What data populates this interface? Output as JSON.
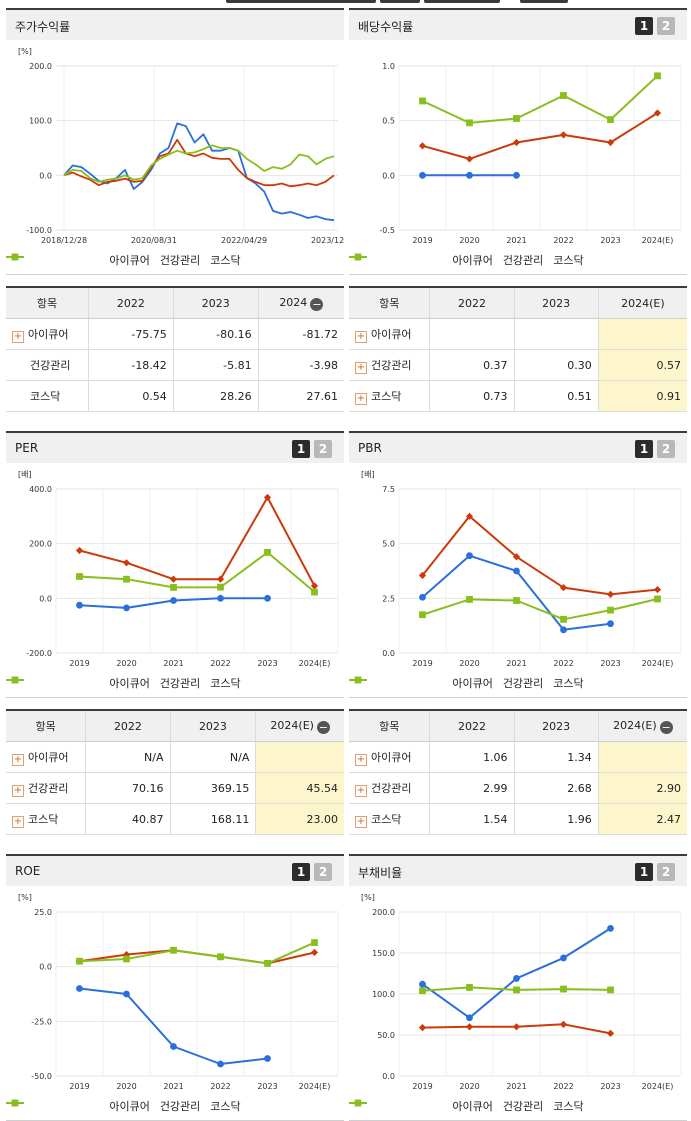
{
  "colors": {
    "s1": "#2a6fdb",
    "s2": "#cc3a0a",
    "s3": "#88bf1e"
  },
  "legend": [
    "아이큐어",
    "건강관리",
    "코스닥"
  ],
  "panels": [
    {
      "title": "주가수익률",
      "toggle": false,
      "unit": "[%]",
      "chart_data": {
        "type": "line",
        "x_labels": [
          "2018/12/28",
          "2020/08/31",
          "2022/04/29",
          "2023/12/28"
        ],
        "y_ticks": [
          "200.0",
          "100.0",
          "0.0",
          "-100.0"
        ],
        "ylim": [
          -100,
          200
        ],
        "series": [
          {
            "name": "아이큐어",
            "values": [
              0,
              18,
              15,
              3,
              -10,
              -15,
              -5,
              10,
              -25,
              -12,
              10,
              40,
              50,
              95,
              90,
              60,
              75,
              45,
              45,
              50,
              45,
              -5,
              -15,
              -30,
              -65,
              -70,
              -67,
              -72,
              -78,
              -75,
              -80,
              -82
            ]
          },
          {
            "name": "건강관리",
            "values": [
              0,
              5,
              -2,
              -8,
              -18,
              -12,
              -10,
              -6,
              -12,
              -10,
              15,
              35,
              40,
              65,
              40,
              35,
              40,
              32,
              30,
              30,
              10,
              -5,
              -12,
              -18,
              -18,
              -15,
              -20,
              -18,
              -15,
              -18,
              -12,
              0
            ]
          },
          {
            "name": "코스닥",
            "values": [
              0,
              10,
              8,
              -5,
              -12,
              -8,
              -6,
              0,
              -8,
              -5,
              18,
              30,
              38,
              45,
              40,
              42,
              48,
              55,
              50,
              50,
              45,
              30,
              20,
              8,
              15,
              12,
              20,
              38,
              35,
              20,
              30,
              35
            ]
          }
        ]
      }
    },
    {
      "title": "배당수익률",
      "toggle": true,
      "unit": "",
      "chart_data": {
        "type": "line",
        "categories": [
          "2019",
          "2020",
          "2021",
          "2022",
          "2023",
          "2024(E)"
        ],
        "y_ticks": [
          "1.0",
          "0.5",
          "0.0",
          "-0.5"
        ],
        "ylim": [
          -0.5,
          1.0
        ],
        "series": [
          {
            "name": "아이큐어",
            "values": [
              0.0,
              0.0,
              0.0,
              null,
              null,
              null
            ]
          },
          {
            "name": "건강관리",
            "values": [
              0.27,
              0.15,
              0.3,
              0.37,
              0.3,
              0.57
            ]
          },
          {
            "name": "코스닥",
            "values": [
              0.68,
              0.48,
              0.52,
              0.73,
              0.51,
              0.91
            ]
          }
        ]
      }
    },
    {
      "title": "PER",
      "toggle": true,
      "unit": "[배]",
      "chart_data": {
        "type": "line",
        "categories": [
          "2019",
          "2020",
          "2021",
          "2022",
          "2023",
          "2024(E)"
        ],
        "y_ticks": [
          "400.0",
          "200.0",
          "0.0",
          "-200.0"
        ],
        "ylim": [
          -200,
          400
        ],
        "series": [
          {
            "name": "아이큐어",
            "values": [
              -25,
              -35,
              -8,
              0,
              0,
              null
            ]
          },
          {
            "name": "건강관리",
            "values": [
              175,
              130,
              70,
              70.16,
              369.15,
              45.54
            ]
          },
          {
            "name": "코스닥",
            "values": [
              80,
              70,
              40,
              40.87,
              168.11,
              23.0
            ]
          }
        ]
      }
    },
    {
      "title": "PBR",
      "toggle": true,
      "unit": "[배]",
      "chart_data": {
        "type": "line",
        "categories": [
          "2019",
          "2020",
          "2021",
          "2022",
          "2023",
          "2024(E)"
        ],
        "y_ticks": [
          "7.5",
          "5.0",
          "2.5",
          "0.0"
        ],
        "ylim": [
          0,
          7.5
        ],
        "series": [
          {
            "name": "아이큐어",
            "values": [
              2.55,
              4.45,
              3.75,
              1.06,
              1.34,
              null
            ]
          },
          {
            "name": "건강관리",
            "values": [
              3.55,
              6.25,
              4.4,
              2.99,
              2.68,
              2.9
            ]
          },
          {
            "name": "코스닥",
            "values": [
              1.75,
              2.45,
              2.4,
              1.54,
              1.96,
              2.47
            ]
          }
        ]
      }
    },
    {
      "title": "ROE",
      "toggle": true,
      "unit": "[%]",
      "chart_data": {
        "type": "line",
        "categories": [
          "2019",
          "2020",
          "2021",
          "2022",
          "2023",
          "2024(E)"
        ],
        "y_ticks": [
          "25.0",
          "0.0",
          "-25.0",
          "-50.0"
        ],
        "ylim": [
          -50,
          25
        ],
        "series": [
          {
            "name": "아이큐어",
            "values": [
              -10,
              -12.5,
              -36.5,
              -44.5,
              -42,
              null
            ]
          },
          {
            "name": "건강관리",
            "values": [
              2.5,
              5.5,
              7.5,
              4.5,
              1.5,
              6.5
            ]
          },
          {
            "name": "코스닥",
            "values": [
              2.5,
              3.5,
              7.5,
              4.5,
              1.5,
              11
            ]
          }
        ]
      }
    },
    {
      "title": "부채비율",
      "toggle": true,
      "unit": "[%]",
      "chart_data": {
        "type": "line",
        "categories": [
          "2019",
          "2020",
          "2021",
          "2022",
          "2023",
          "2024(E)"
        ],
        "y_ticks": [
          "200.0",
          "150.0",
          "100.0",
          "50.0",
          "0.0"
        ],
        "ylim": [
          0,
          200
        ],
        "series": [
          {
            "name": "아이큐어",
            "values": [
              112,
              71,
              119,
              144,
              180,
              null
            ]
          },
          {
            "name": "건강관리",
            "values": [
              59,
              60,
              60,
              63,
              52,
              null
            ]
          },
          {
            "name": "코스닥",
            "values": [
              104,
              108,
              105,
              106,
              105,
              null
            ]
          }
        ]
      }
    }
  ],
  "tables": [
    {
      "header": [
        "항목",
        "2022",
        "2023",
        "2024"
      ],
      "minus": true,
      "rows": [
        {
          "label": "아이큐어",
          "plus": true,
          "values": [
            "-75.75",
            "-80.16",
            "-81.72"
          ]
        },
        {
          "label": "건강관리",
          "plus": false,
          "values": [
            "-18.42",
            "-5.81",
            "-3.98"
          ]
        },
        {
          "label": "코스닥",
          "plus": false,
          "values": [
            "0.54",
            "28.26",
            "27.61"
          ]
        }
      ]
    },
    {
      "header": [
        "항목",
        "2022",
        "2023",
        "2024(E)"
      ],
      "minus": false,
      "rows": [
        {
          "label": "아이큐어",
          "plus": true,
          "values": [
            "",
            "",
            ""
          ]
        },
        {
          "label": "건강관리",
          "plus": true,
          "values": [
            "0.37",
            "0.30",
            "0.57"
          ]
        },
        {
          "label": "코스닥",
          "plus": true,
          "values": [
            "0.73",
            "0.51",
            "0.91"
          ]
        }
      ]
    },
    {
      "header": [
        "항목",
        "2022",
        "2023",
        "2024(E)"
      ],
      "minus": true,
      "rows": [
        {
          "label": "아이큐어",
          "plus": true,
          "values": [
            "N/A",
            "N/A",
            ""
          ]
        },
        {
          "label": "건강관리",
          "plus": true,
          "values": [
            "70.16",
            "369.15",
            "45.54"
          ]
        },
        {
          "label": "코스닥",
          "plus": true,
          "values": [
            "40.87",
            "168.11",
            "23.00"
          ]
        }
      ]
    },
    {
      "header": [
        "항목",
        "2022",
        "2023",
        "2024(E)"
      ],
      "minus": true,
      "rows": [
        {
          "label": "아이큐어",
          "plus": true,
          "values": [
            "1.06",
            "1.34",
            ""
          ]
        },
        {
          "label": "건강관리",
          "plus": true,
          "values": [
            "2.99",
            "2.68",
            "2.90"
          ]
        },
        {
          "label": "코스닥",
          "plus": true,
          "values": [
            "1.54",
            "1.96",
            "2.47"
          ]
        }
      ]
    }
  ]
}
